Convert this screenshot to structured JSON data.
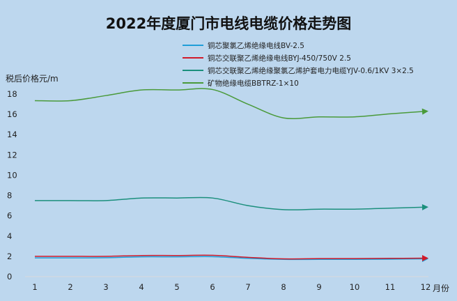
{
  "chart_data": {
    "type": "line",
    "title": "2022年度厦门市电线电缆价格走势图",
    "ylabel": "税后价格元/m",
    "xlabel": "月份",
    "categories": [
      "1",
      "2",
      "3",
      "4",
      "5",
      "6",
      "7",
      "8",
      "9",
      "10",
      "11",
      "12"
    ],
    "ylim": [
      0,
      18
    ],
    "yticks": [
      0,
      2,
      4,
      6,
      8,
      10,
      12,
      14,
      16,
      18
    ],
    "grid": false,
    "legend_position": "top",
    "series": [
      {
        "name": "铜芯聚氯乙烯绝缘电线BV-2.5",
        "color": "#1f9ed8",
        "values": [
          1.85,
          1.85,
          1.86,
          1.95,
          1.95,
          1.97,
          1.8,
          1.7,
          1.7,
          1.7,
          1.72,
          1.75
        ]
      },
      {
        "name": "铜芯交联聚乙烯绝缘电线BYJ-450/750V 2.5",
        "color": "#d11a2a",
        "values": [
          2.0,
          2.0,
          2.0,
          2.08,
          2.08,
          2.1,
          1.9,
          1.75,
          1.78,
          1.78,
          1.8,
          1.82
        ]
      },
      {
        "name": "铜芯交联聚乙烯绝缘聚氯乙烯护套电力电缆YJV-0.6/1KV 3×2.5",
        "color": "#1b8f7c",
        "values": [
          7.5,
          7.5,
          7.5,
          7.75,
          7.75,
          7.75,
          7.0,
          6.6,
          6.65,
          6.65,
          6.75,
          6.85
        ]
      },
      {
        "name": "矿物绝缘电缆BBTRZ-1×10",
        "color": "#4a9a3a",
        "values": [
          17.35,
          17.35,
          17.85,
          18.4,
          18.4,
          18.45,
          17.0,
          15.65,
          15.75,
          15.75,
          16.05,
          16.3
        ]
      }
    ]
  }
}
